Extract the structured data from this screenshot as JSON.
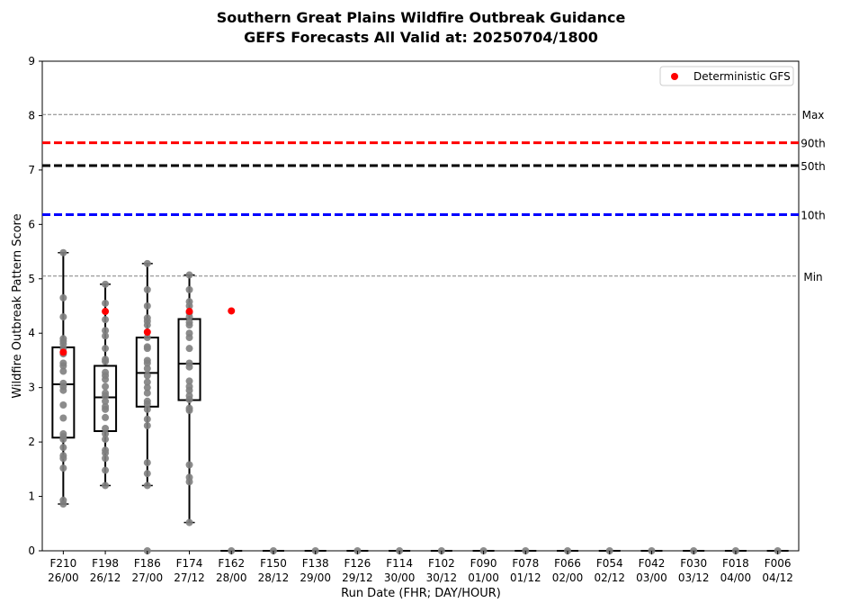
{
  "chart_data": {
    "type": "box",
    "title": "Southern Great Plains Wildfire Outbreak Guidance",
    "subtitle": "GEFS Forecasts All Valid at: 20250704/1800",
    "xlabel": "Run Date (FHR; DAY/HOUR)",
    "ylabel": "Wildfire Outbreak Pattern Score",
    "ylim": [
      0,
      9
    ],
    "yticks": [
      0,
      1,
      2,
      3,
      4,
      5,
      6,
      7,
      8,
      9
    ],
    "grid": false,
    "legend": {
      "position": "top-right",
      "entries": [
        "Deterministic GFS"
      ]
    },
    "colors": {
      "ensemble_points": "#808080",
      "deterministic": "#ff0000",
      "p90": "#ff0000",
      "p50": "#000000",
      "p10": "#0000ff",
      "minmax": "#808080"
    },
    "reference_lines": [
      {
        "label": "Max",
        "value": 8.02,
        "style": "dashed-thin",
        "color": "#808080"
      },
      {
        "label": "90th",
        "value": 7.5,
        "style": "dashed-thick",
        "color": "#ff0000"
      },
      {
        "label": "50th",
        "value": 7.08,
        "style": "dashed-thick",
        "color": "#000000"
      },
      {
        "label": "10th",
        "value": 6.18,
        "style": "dashed-thick",
        "color": "#0000ff"
      },
      {
        "label": "Min",
        "value": 5.05,
        "style": "dashed-thin",
        "color": "#808080"
      }
    ],
    "categories": [
      {
        "fhr": "F210",
        "date": "26/00"
      },
      {
        "fhr": "F198",
        "date": "26/12"
      },
      {
        "fhr": "F186",
        "date": "27/00"
      },
      {
        "fhr": "F174",
        "date": "27/12"
      },
      {
        "fhr": "F162",
        "date": "28/00"
      },
      {
        "fhr": "F150",
        "date": "28/12"
      },
      {
        "fhr": "F138",
        "date": "29/00"
      },
      {
        "fhr": "F126",
        "date": "29/12"
      },
      {
        "fhr": "F114",
        "date": "30/00"
      },
      {
        "fhr": "F102",
        "date": "30/12"
      },
      {
        "fhr": "F090",
        "date": "01/00"
      },
      {
        "fhr": "F078",
        "date": "01/12"
      },
      {
        "fhr": "F066",
        "date": "02/00"
      },
      {
        "fhr": "F054",
        "date": "02/12"
      },
      {
        "fhr": "F042",
        "date": "03/00"
      },
      {
        "fhr": "F030",
        "date": "03/12"
      },
      {
        "fhr": "F018",
        "date": "04/00"
      },
      {
        "fhr": "F006",
        "date": "04/12"
      }
    ],
    "boxes": [
      {
        "q1": 2.08,
        "median": 3.06,
        "q3": 3.74,
        "whisker_low": 0.86,
        "whisker_high": 5.48
      },
      {
        "q1": 2.2,
        "median": 2.82,
        "q3": 3.4,
        "whisker_low": 1.2,
        "whisker_high": 4.9
      },
      {
        "q1": 2.65,
        "median": 3.27,
        "q3": 3.92,
        "whisker_low": 1.2,
        "whisker_high": 5.28
      },
      {
        "q1": 2.77,
        "median": 3.44,
        "q3": 4.26,
        "whisker_low": 0.52,
        "whisker_high": 5.07
      },
      null,
      null,
      null,
      null,
      null,
      null,
      null,
      null,
      null,
      null,
      null,
      null,
      null,
      null
    ],
    "ensemble_members": [
      [
        5.48,
        4.65,
        4.3,
        3.9,
        3.85,
        3.8,
        3.72,
        3.62,
        3.45,
        3.4,
        3.3,
        3.08,
        3.02,
        2.95,
        2.68,
        2.44,
        2.15,
        2.1,
        2.05,
        1.9,
        1.75,
        1.7,
        1.52,
        0.93,
        0.86
      ],
      [
        4.9,
        4.55,
        4.25,
        4.05,
        3.95,
        3.72,
        3.52,
        3.48,
        3.28,
        3.22,
        3.15,
        3.02,
        2.9,
        2.85,
        2.75,
        2.65,
        2.6,
        2.45,
        2.25,
        2.15,
        2.05,
        1.85,
        1.8,
        1.7,
        1.48,
        1.2
      ],
      [
        5.28,
        4.8,
        4.5,
        4.28,
        4.22,
        4.15,
        3.92,
        3.75,
        3.72,
        3.5,
        3.45,
        3.35,
        3.22,
        3.1,
        3.0,
        2.9,
        2.75,
        2.7,
        2.6,
        2.42,
        2.3,
        1.62,
        1.42,
        1.2,
        0.0
      ],
      [
        5.07,
        4.8,
        4.58,
        4.5,
        4.38,
        4.3,
        4.2,
        4.15,
        4.0,
        3.92,
        3.72,
        3.45,
        3.38,
        3.12,
        3.02,
        2.95,
        2.85,
        2.78,
        2.62,
        2.58,
        1.58,
        1.35,
        1.27,
        0.52
      ],
      [
        0
      ],
      [
        0
      ],
      [
        0
      ],
      [
        0
      ],
      [
        0
      ],
      [
        0
      ],
      [
        0
      ],
      [
        0
      ],
      [
        0
      ],
      [
        0
      ],
      [
        0
      ],
      [
        0
      ],
      [
        0
      ],
      [
        0
      ]
    ],
    "deterministic_gfs": [
      3.65,
      4.4,
      4.02,
      4.4,
      4.41,
      null,
      null,
      null,
      null,
      null,
      null,
      null,
      null,
      null,
      null,
      null,
      null,
      null
    ]
  }
}
